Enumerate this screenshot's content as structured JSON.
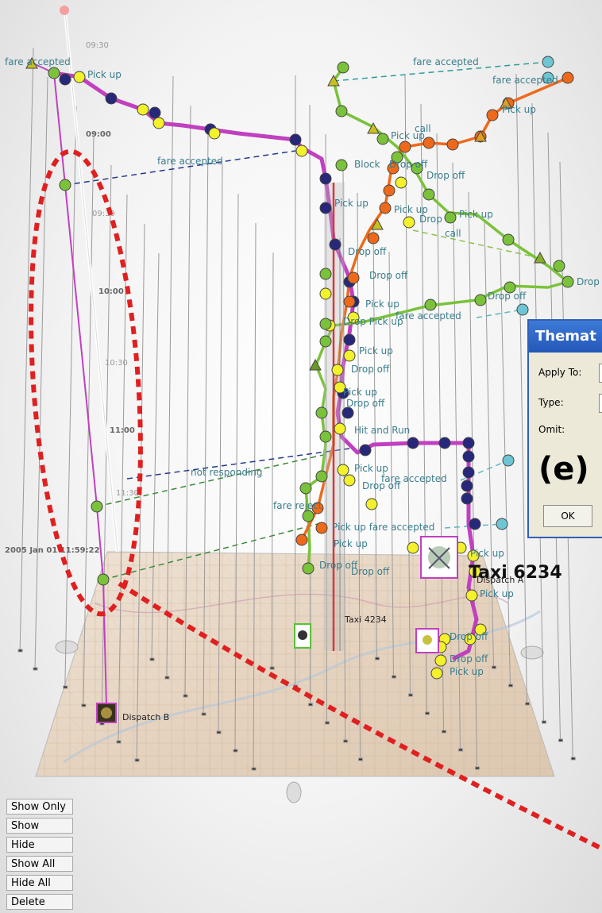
{
  "time_axis": {
    "ticks": [
      "09:30",
      "09:00",
      "09:30",
      "10:00",
      "10:30",
      "11:00",
      "11:30"
    ],
    "base_label": "2005 Jan 01 11:59:22"
  },
  "event_labels": {
    "fare_accepted_left": "fare accepted",
    "pick_up_top": "Pick up",
    "fare_accepted_top_right": "fare accepted",
    "fare_accepted_right": "fare accepted",
    "pick_up_right": "Pick up",
    "call_top": "call",
    "pick_up_mid_top": "Pick up",
    "fare_accepted_mid": "fare accepted",
    "block": "Block",
    "drop_off_a": "Drop off",
    "drop_off_b": "Drop off",
    "pick_up_center": "Pick up",
    "pick_up_c": "Pick up",
    "drop_c": "Drop",
    "pick_up_d": "Pick up",
    "call_mid": "call",
    "drop_off_c": "Drop off",
    "drop_off_d": "Drop off",
    "drop_off_far": "Drop",
    "drop_off_e": "Drop off",
    "pick_up_e": "Pick up",
    "fare_accepted_lower": "fare accepted",
    "drop_pick": "Drop Pick up",
    "pick_up_f": "Pick up",
    "drop_off_f": "Drop off",
    "pick_up_g": "Pick up",
    "drop_off_g": "Drop off",
    "hit_and_run": "Hit and Run",
    "not_responding": "not responding",
    "pick_up_h": "Pick up",
    "fare_accepted_h": "fare accepted",
    "drop_off_h": "Drop off",
    "fare_reject": "fare reject",
    "pick_up_fare_accepted": "Pick up fare accepted",
    "pick_up_i": "Pick up",
    "drop_off_i": "Drop off",
    "pick_up_j": "Pick up",
    "pick_up_k": "Pick up",
    "drop_off_k": "Drop off",
    "drop_off_l": "Drop off",
    "pick_up_l": "Pick up"
  },
  "map_labels": {
    "taxi_big": "Taxi 6234",
    "dispatch_a": "Dispatch A",
    "taxi_small": "Taxi 4234",
    "dispatch_b": "Dispatch B"
  },
  "dialog": {
    "title": "Themat",
    "apply_to": "Apply To:",
    "type": "Type:",
    "omit": "Omit:",
    "big_letter": "(e)",
    "ok": "OK"
  },
  "commands": [
    "Show Only",
    "Show",
    "Hide",
    "Show All",
    "Hide All",
    "Delete"
  ],
  "colors": {
    "magenta": "#c040c0",
    "green": "#7ac23a",
    "orange": "#ee6a1a",
    "navy": "#27287a",
    "yellow": "#f3f02c",
    "cyan": "#6ec6d4",
    "red_dash": "#e02020"
  }
}
